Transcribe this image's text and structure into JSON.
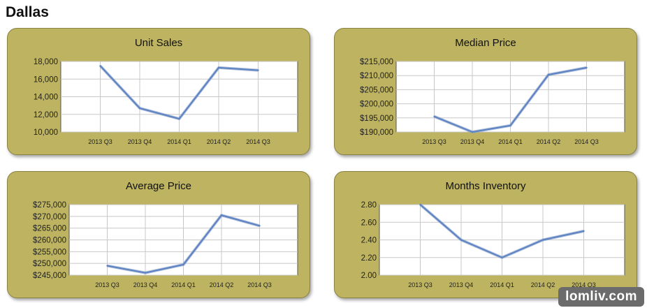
{
  "page": {
    "title": "Dallas"
  },
  "watermark": "lomliv.com",
  "chart_data": [
    {
      "type": "line",
      "title": "Unit Sales",
      "categories": [
        "2013 Q3",
        "2013 Q4",
        "2014 Q1",
        "2014 Q2",
        "2014 Q3"
      ],
      "values": [
        17500,
        12700,
        11500,
        17300,
        17000
      ],
      "ylim": [
        10000,
        18000
      ],
      "yticks": [
        10000,
        12000,
        14000,
        16000,
        18000
      ],
      "ytick_labels": [
        "10,000",
        "12,000",
        "14,000",
        "16,000",
        "18,000"
      ],
      "grid": true,
      "line_color": "#5b83c4"
    },
    {
      "type": "line",
      "title": "Median Price",
      "categories": [
        "2013 Q3",
        "2013 Q4",
        "2014 Q1",
        "2014 Q2",
        "2014 Q3"
      ],
      "values": [
        195500,
        190000,
        192300,
        210300,
        212800
      ],
      "ylim": [
        190000,
        215000
      ],
      "yticks": [
        190000,
        195000,
        200000,
        205000,
        210000,
        215000
      ],
      "ytick_labels": [
        "$190,000",
        "$195,000",
        "$200,000",
        "$205,000",
        "$210,000",
        "$215,000"
      ],
      "grid": true,
      "line_color": "#5b83c4"
    },
    {
      "type": "line",
      "title": "Average Price",
      "categories": [
        "2013 Q3",
        "2013 Q4",
        "2014 Q1",
        "2014 Q2",
        "2014 Q3"
      ],
      "values": [
        249000,
        246000,
        249500,
        270500,
        266000
      ],
      "ylim": [
        245000,
        275000
      ],
      "yticks": [
        245000,
        250000,
        255000,
        260000,
        265000,
        270000,
        275000
      ],
      "ytick_labels": [
        "$245,000",
        "$250,000",
        "$255,000",
        "$260,000",
        "$265,000",
        "$270,000",
        "$275,000"
      ],
      "grid": true,
      "line_color": "#5b83c4"
    },
    {
      "type": "line",
      "title": "Months Inventory",
      "categories": [
        "2013 Q3",
        "2013 Q4",
        "2014 Q1",
        "2014 Q2",
        "2014 Q3"
      ],
      "values": [
        2.8,
        2.4,
        2.2,
        2.4,
        2.5
      ],
      "ylim": [
        2.0,
        2.8
      ],
      "yticks": [
        2.0,
        2.2,
        2.4,
        2.6,
        2.8
      ],
      "ytick_labels": [
        "2.00",
        "2.20",
        "2.40",
        "2.60",
        "2.80"
      ],
      "grid": true,
      "line_color": "#5b83c4"
    }
  ]
}
